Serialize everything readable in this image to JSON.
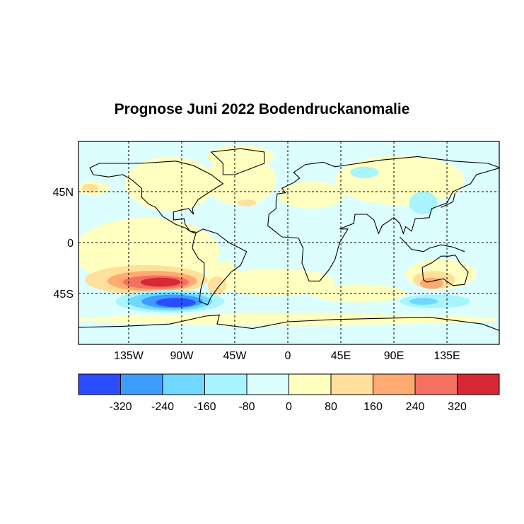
{
  "chart_data": {
    "type": "heatmap",
    "title": "Prognose Juni 2022 Bodendruckanomalie",
    "x_ticks": [
      {
        "lon": -135,
        "label": "135W"
      },
      {
        "lon": -90,
        "label": "90W"
      },
      {
        "lon": -45,
        "label": "45W"
      },
      {
        "lon": 0,
        "label": "0"
      },
      {
        "lon": 45,
        "label": "45E"
      },
      {
        "lon": 90,
        "label": "90E"
      },
      {
        "lon": 135,
        "label": "135E"
      }
    ],
    "y_ticks": [
      {
        "lat": 45,
        "label": "45N"
      },
      {
        "lat": 0,
        "label": "0"
      },
      {
        "lat": -45,
        "label": "45S"
      }
    ],
    "lon_range": [
      -178,
      179
    ],
    "lat_range": [
      -90,
      89
    ],
    "grid": true,
    "colorbar": {
      "boundaries": [
        -400,
        -320,
        -240,
        -160,
        -80,
        0,
        80,
        160,
        240,
        320,
        400
      ],
      "tick_labels": [
        "-320",
        "-240",
        "-160",
        "-80",
        "0",
        "80",
        "160",
        "240",
        "320"
      ],
      "colors": [
        "#2a4dff",
        "#3c9cff",
        "#70d8ff",
        "#a8f4ff",
        "#dcfeff",
        "#ffffc0",
        "#ffe09a",
        "#ffaa70",
        "#f47060",
        "#d82835"
      ],
      "placement": "bottom"
    },
    "anomaly_regions": [
      {
        "lon": -120,
        "lat": -8,
        "rlon": 62,
        "rlat": 30,
        "value": 40
      },
      {
        "lon": -100,
        "lat": 52,
        "rlon": 38,
        "rlat": 24,
        "value": 40
      },
      {
        "lon": -40,
        "lat": 55,
        "rlon": 30,
        "rlat": 22,
        "value": 40
      },
      {
        "lon": -40,
        "lat": 76,
        "rlon": 28,
        "rlat": 10,
        "value": 40
      },
      {
        "lon": -165,
        "lat": 48,
        "rlon": 14,
        "rlat": 6,
        "value": 40
      },
      {
        "lon": -168,
        "lat": 48,
        "rlon": 7,
        "rlat": 4,
        "value": 120
      },
      {
        "lon": -35,
        "lat": 35,
        "rlon": 8,
        "rlat": 3,
        "value": 120
      },
      {
        "lon": 20,
        "lat": 42,
        "rlon": 28,
        "rlat": 12,
        "value": 40
      },
      {
        "lon": 95,
        "lat": 55,
        "rlon": 55,
        "rlat": 22,
        "value": 40
      },
      {
        "lon": 65,
        "lat": 62,
        "rlon": 12,
        "rlat": 5,
        "value": -120
      },
      {
        "lon": 115,
        "lat": 35,
        "rlon": 12,
        "rlat": 10,
        "value": -120
      },
      {
        "lon": 40,
        "lat": 8,
        "rlon": 40,
        "rlat": 20,
        "value": -40
      },
      {
        "lon": -10,
        "lat": -35,
        "rlon": 50,
        "rlat": 12,
        "value": 40
      },
      {
        "lon": 60,
        "lat": -45,
        "rlon": 40,
        "rlat": 8,
        "value": 40
      },
      {
        "lon": -55,
        "lat": -30,
        "rlon": 14,
        "rlat": 14,
        "value": 40
      },
      {
        "lon": -60,
        "lat": -38,
        "rlon": 8,
        "rlat": 8,
        "value": 120
      },
      {
        "lon": -120,
        "lat": -33,
        "rlon": 52,
        "rlat": 13,
        "value": 120
      },
      {
        "lon": -115,
        "lat": -34,
        "rlon": 38,
        "rlat": 9,
        "value": 200
      },
      {
        "lon": -112,
        "lat": -35,
        "rlon": 28,
        "rlat": 6,
        "value": 280
      },
      {
        "lon": -108,
        "lat": -35,
        "rlon": 17,
        "rlat": 4,
        "value": 360
      },
      {
        "lon": -100,
        "lat": -52,
        "rlon": 46,
        "rlat": 10,
        "value": -120
      },
      {
        "lon": -100,
        "lat": -52,
        "rlon": 36,
        "rlat": 8,
        "value": -200
      },
      {
        "lon": -98,
        "lat": -52,
        "rlon": 26,
        "rlat": 6,
        "value": -280
      },
      {
        "lon": -95,
        "lat": -53,
        "rlon": 17,
        "rlat": 4,
        "value": -360
      },
      {
        "lon": 130,
        "lat": -28,
        "rlon": 30,
        "rlat": 13,
        "value": 40
      },
      {
        "lon": 124,
        "lat": -33,
        "rlon": 18,
        "rlat": 8,
        "value": 120
      },
      {
        "lon": 122,
        "lat": -36,
        "rlon": 10,
        "rlat": 5,
        "value": 200
      },
      {
        "lon": 125,
        "lat": -52,
        "rlon": 30,
        "rlat": 6,
        "value": -120
      },
      {
        "lon": 115,
        "lat": -52,
        "rlon": 12,
        "rlat": 3,
        "value": -200
      },
      {
        "lon": 0,
        "lat": -68,
        "rlon": 180,
        "rlat": 5,
        "value": 40
      }
    ]
  }
}
